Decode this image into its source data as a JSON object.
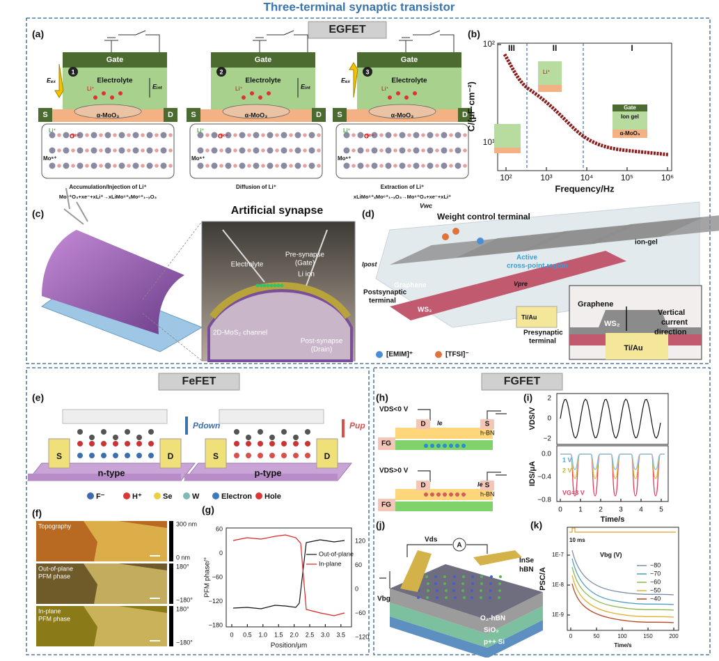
{
  "title": "Three-terminal synaptic transistor",
  "sections": {
    "egfet": "EGFET",
    "fefet": "FeFET",
    "fgfet": "FGFET"
  },
  "panel_a": {
    "label": "(a)",
    "devices": [
      {
        "step": "1",
        "gate": "Gate",
        "electrolyte": "Electrolyte",
        "source": "S",
        "drain": "D",
        "channel": "α-MoO₃",
        "ion": "Li⁺",
        "oxygen": "O²⁻",
        "metal": "Mo⁶⁺",
        "field_ex": "Eₑₓ",
        "field_int": "Eᵢₙₜ",
        "caption": "Accumulation/Injection of Li⁺",
        "equation": "Mo⁶⁺O₃+xe⁻+xLi⁺→xLiMo⁵⁺ₓMo⁶⁺₁₋ₓO₃"
      },
      {
        "step": "2",
        "gate": "Gate",
        "electrolyte": "Electrolyte",
        "source": "S",
        "drain": "D",
        "channel": "α-MoO₃",
        "ion": "Li⁺",
        "oxygen": "O²⁻",
        "metal": "Mo⁶⁺",
        "field_int": "Eᵢₙₜ",
        "caption": "Diffusion of Li⁺"
      },
      {
        "step": "3",
        "gate": "Gate",
        "electrolyte": "Electrolyte",
        "source": "S",
        "drain": "D",
        "channel": "α-MoO₃",
        "ion": "Li⁺",
        "oxygen": "O²⁻",
        "metal": "Mo⁶⁺",
        "field_ex": "Eₑₓ",
        "caption": "Extraction of Li⁺",
        "equation": "xLiMo⁵⁺ₓMo⁶⁺₁₋ₓO₃→Mo⁶⁺O₃+xe⁻+xLi⁺"
      }
    ]
  },
  "panel_b": {
    "label": "(b)",
    "ylabel": "C/(μF·cm⁻²)",
    "xlabel": "Frequency/Hz",
    "yticks": [
      "10²",
      "10¹"
    ],
    "xticks": [
      "10²",
      "10³",
      "10⁴",
      "10⁵",
      "10⁶"
    ],
    "regions": [
      "III",
      "II",
      "I"
    ],
    "inset": {
      "gate": "Gate",
      "ion_gel": "Ion gel",
      "channel": "α-MoO₃",
      "ion": "Li⁺"
    }
  },
  "panel_c": {
    "label": "(c)",
    "title": "Artificial synapse",
    "pre": "Pre-synapse",
    "pre_gate": "(Gate)",
    "electrolyte": "Electrolyte",
    "ion": "Li ion",
    "channel": "2D-MoS₂ channel",
    "post": "Post-synapse",
    "post_drain": "(Drain)"
  },
  "panel_d": {
    "label": "(d)",
    "vwc": "Vwc",
    "weight": "Weight control terminal",
    "ipost": "Ipost",
    "post1": "Postsynaptic",
    "post2": "terminal",
    "graphene": "Graphene",
    "ws2": "WS₂",
    "active1": "Active",
    "active2": "cross-point region",
    "vpre": "Vpre",
    "tiau": "Ti/Au",
    "pre1": "Presynaptic",
    "pre2": "terminal",
    "iongel": "ion-gel",
    "emim": "[EMIM]⁺",
    "tfsi": "[TFSI]⁻",
    "inset": {
      "graphene": "Graphene",
      "ws2": "WS₂",
      "vertical1": "Vertical",
      "vertical2": "current",
      "vertical3": "direction",
      "tiau": "Ti/Au"
    }
  },
  "panel_e": {
    "label": "(e)",
    "source": "S",
    "drain": "D",
    "pdown": "Pdown",
    "ntype": "n-type",
    "pup": "Pup",
    "ptype": "p-type",
    "legend": [
      "F⁻",
      "H⁺",
      "Se",
      "W",
      "Electron",
      "Hole"
    ]
  },
  "panel_f": {
    "label": "(f)",
    "images": [
      {
        "title": "Topography",
        "top": "300 nm",
        "bottom": "0 nm"
      },
      {
        "title": "Out-of-plane",
        "title2": "PFM phase",
        "top": "180°",
        "bottom": "−180°"
      },
      {
        "title": "In-plane",
        "title2": "PFM phase",
        "top": "180°",
        "bottom": "−180°"
      }
    ]
  },
  "panel_g": {
    "label": "(g)",
    "ylabel": "PFM phase/°",
    "xlabel": "Position/μm",
    "yticks_left": [
      "60",
      "0",
      "−60",
      "−120",
      "−180"
    ],
    "yticks_right": [
      "120",
      "60",
      "0",
      "−60",
      "−120"
    ],
    "xticks": [
      "0",
      "0.5",
      "1.0",
      "1.5",
      "2.0",
      "2.5",
      "3.0",
      "3.5"
    ],
    "legend": [
      "Out-of-plane",
      "In-plane"
    ]
  },
  "panel_h": {
    "label": "(h)",
    "top": {
      "bias": "VDS<0 V",
      "drain": "D",
      "source": "S",
      "current": "Ie",
      "fg": "FG",
      "hbn": "h-BN"
    },
    "bottom": {
      "bias": "VDS>0 V",
      "drain": "D",
      "source": "S",
      "current": "Ie",
      "fg": "FG",
      "hbn": "h-BN"
    }
  },
  "panel_i": {
    "label": "(i)",
    "ylabel_top": "VDS/V",
    "ylabel_bottom": "IDS/μA",
    "yticks_top": [
      "2",
      "0",
      "−2"
    ],
    "yticks_bottom": [
      "0.0",
      "−0.4",
      "−0.8"
    ],
    "xticks": [
      "0",
      "1",
      "2",
      "3",
      "4",
      "5"
    ],
    "xlabel": "Time/s",
    "legend": [
      "1 V",
      "2 V",
      "VG=3 V"
    ]
  },
  "panel_j": {
    "label": "(j)",
    "vds": "Vds",
    "ammeter": "A",
    "vbg": "Vbg",
    "inse": "InSe",
    "hbn": "hBN",
    "o2hbn": "O₂-hBN",
    "sio2": "SiO₂",
    "si": "p++ Si"
  },
  "panel_k": {
    "label": "(k)",
    "pulse": "10 ms",
    "legend_title": "Vbg (V)",
    "legend": [
      "−80",
      "−70",
      "−60",
      "−50",
      "−40"
    ],
    "ylabel": "PSC/A",
    "yticks": [
      "1E-7",
      "1E-8",
      "1E-9"
    ],
    "xticks": [
      "0",
      "50",
      "100",
      "150",
      "200"
    ],
    "xlabel": "Time/s"
  }
}
